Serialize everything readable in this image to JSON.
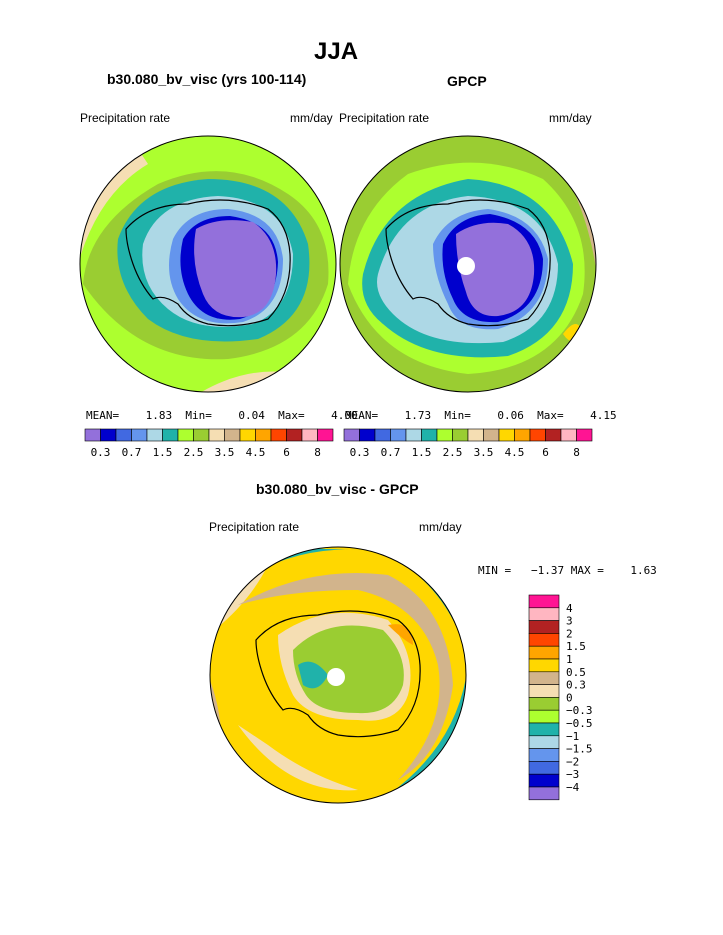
{
  "page": {
    "title": "JJA"
  },
  "panels": {
    "left": {
      "heading": "b30.080_bv_visc (yrs 100-114)",
      "left_label": "Precipitation rate",
      "units": "mm/day",
      "stats": {
        "mean_label": "MEAN=",
        "mean": "1.83",
        "min_label": "Min=",
        "min": "0.04",
        "max_label": "Max=",
        "max": "4.00"
      }
    },
    "right": {
      "heading": "GPCP",
      "left_label": "Precipitation rate",
      "units": "mm/day",
      "stats": {
        "mean_label": "MEAN=",
        "mean": "1.73",
        "min_label": "Min=",
        "min": "0.06",
        "max_label": "Max=",
        "max": "4.15"
      }
    },
    "diff": {
      "heading": "b30.080_bv_visc - GPCP",
      "left_label": "Precipitation rate",
      "units": "mm/day",
      "minmax": "MIN =   −1.37 MAX =    1.63"
    }
  },
  "colorbars": {
    "horizontal": {
      "colors": [
        "#9370db",
        "#0000cd",
        "#4169e1",
        "#6495ed",
        "#add8e6",
        "#20b2aa",
        "#adff2f",
        "#9acd32",
        "#f5deb3",
        "#d2b48c",
        "#ffd700",
        "#ffa500",
        "#ff4500",
        "#b22222",
        "#ffb6c1",
        "#ff1493"
      ],
      "labels": [
        "0.3",
        "0.7",
        "1.5",
        "2.5",
        "3.5",
        "4.5",
        "6",
        "8"
      ]
    },
    "vertical": {
      "colors_top_to_bottom": [
        "#ff1493",
        "#ffb6c1",
        "#b22222",
        "#ff4500",
        "#ffa500",
        "#ffd700",
        "#d2b48c",
        "#f5deb3",
        "#9acd32",
        "#adff2f",
        "#20b2aa",
        "#add8e6",
        "#6495ed",
        "#4169e1",
        "#0000cd",
        "#9370db"
      ],
      "labels_top_to_bottom": [
        "4",
        "3",
        "2",
        "1.5",
        "1",
        "0.5",
        "0.3",
        "0",
        "−0.3",
        "−0.5",
        "−1",
        "−1.5",
        "−2",
        "−3",
        "−4"
      ]
    }
  },
  "map_colors": {
    "outer_green": "#9acd32",
    "light_green": "#adff2f",
    "teal": "#20b2aa",
    "light_blue": "#add8e6",
    "cornflower": "#6495ed",
    "royal": "#4169e1",
    "blue": "#0000cd",
    "purple": "#9370db",
    "wheat": "#f5deb3",
    "tan": "#d2b48c",
    "gold": "#ffd700",
    "orange": "#ffa500"
  }
}
